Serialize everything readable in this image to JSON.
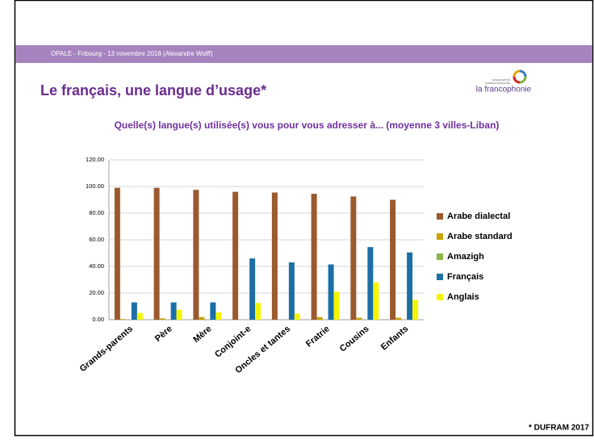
{
  "slide": {
    "header": "OPALE - Fribourg - 13 novembre 2018 (Alexandre Wolff)",
    "title": "Le français, une langue d’usage*",
    "logo_line1": "ORGANISATION",
    "logo_line2": "INTERNATIONALE DE",
    "logo_name": "la francophonie",
    "footnote": "* DUFRAM 2017"
  },
  "chart_data": {
    "type": "bar",
    "title": "Quelle(s) langue(s) utilisée(s) vous pour vous adresser à... (moyenne 3 villes-Liban)",
    "categories": [
      "Grands-parents",
      "Père",
      "Mère",
      "Conjoint-e",
      "Oncles et tantes",
      "Fratrie",
      "Cousins",
      "Enfants"
    ],
    "series": [
      {
        "name": "Arabe dialectal",
        "color": "#9b5a2e",
        "values": [
          99,
          99,
          97.5,
          96,
          95.5,
          94.5,
          92.5,
          90
        ]
      },
      {
        "name": "Arabe standard",
        "color": "#c9a100",
        "values": [
          0.5,
          1,
          2,
          0,
          0,
          2,
          1.5,
          1.5
        ]
      },
      {
        "name": "Amazigh",
        "color": "#8db44a",
        "values": [
          0,
          0,
          0,
          0,
          0,
          0,
          0,
          0
        ]
      },
      {
        "name": "Français",
        "color": "#1b6fa6",
        "values": [
          13,
          13,
          13,
          46,
          43,
          41.5,
          54.5,
          50.5
        ]
      },
      {
        "name": "Anglais",
        "color": "#f5f500",
        "values": [
          5,
          7.5,
          5.5,
          12.5,
          4.5,
          21,
          28,
          15
        ]
      }
    ],
    "ylim": [
      0,
      120
    ],
    "yticks": [
      {
        "value": 0,
        "label": "0.00"
      },
      {
        "value": 20,
        "label": "20.00"
      },
      {
        "value": 40,
        "label": "40.00"
      },
      {
        "value": 60,
        "label": "60.00"
      },
      {
        "value": 80,
        "label": "80.00"
      },
      {
        "value": 100,
        "label": "100.00"
      },
      {
        "value": 120,
        "label": "120.00"
      }
    ],
    "grid": true,
    "legend": "right"
  }
}
